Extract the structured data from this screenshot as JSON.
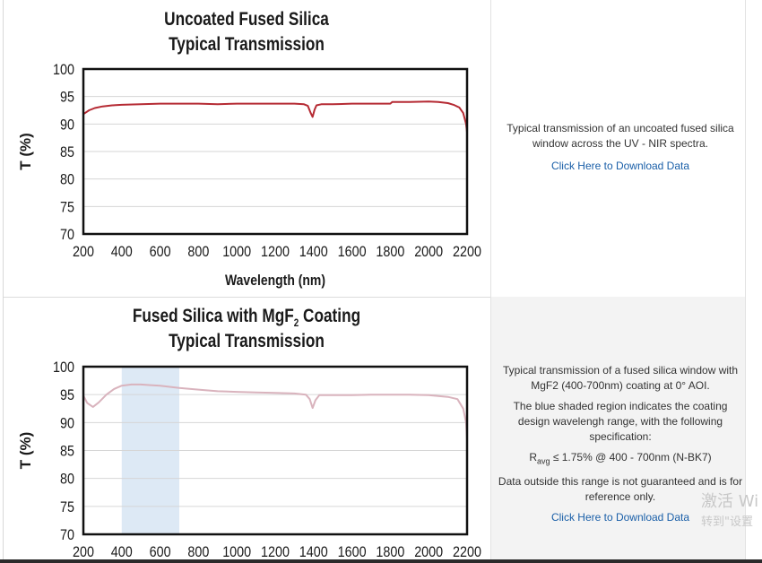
{
  "panel1": {
    "title_line1": "Uncoated Fused Silica",
    "title_line2": "Typical Transmission",
    "description": "Typical transmission of an uncoated fused silica window across the UV - NIR spectra.",
    "download_link": "Click Here to Download Data"
  },
  "panel2": {
    "title_line1_pre": "Fused Silica with MgF",
    "title_line1_sub": "2",
    "title_line1_post": " Coating",
    "title_line2": "Typical Transmission",
    "description1": "Typical transmission of a fused silica window with MgF2 (400-700nm) coating at 0° AOI.",
    "description2": "The blue shaded region indicates the coating design wavelengh range, with the following specification:",
    "spec_R": "R",
    "spec_sub": "avg",
    "spec_rest": " ≤ 1.75% @ 400 - 700nm (N-BK7)",
    "description3": "Data outside this range is not guaranteed and is for reference only.",
    "download_link": "Click Here to Download Data"
  },
  "watermark": {
    "line1": "激活 Wi",
    "line2": "转到\"设置"
  },
  "colors": {
    "uncoated_curve": "#b52a33",
    "coated_curve": "#d9b3bd",
    "shaded_band": "#dde9f5",
    "link": "#1a5fa8"
  },
  "chart_data": [
    {
      "type": "line",
      "title": "Uncoated Fused Silica Typical Transmission",
      "xlabel": "Wavelength (nm)",
      "ylabel": "T (%)",
      "xlim": [
        200,
        2200
      ],
      "ylim": [
        70,
        100
      ],
      "xticks": [
        "200",
        "400",
        "600",
        "800",
        "1000",
        "1200",
        "1400",
        "1600",
        "1800",
        "2000",
        "2200"
      ],
      "yticks": [
        "70",
        "75",
        "80",
        "85",
        "90",
        "95",
        "100"
      ],
      "grid": true,
      "series": [
        {
          "x": [
            200,
            230,
            260,
            300,
            350,
            400,
            500,
            600,
            700,
            800,
            900,
            1000,
            1100,
            1200,
            1300,
            1350,
            1370,
            1385,
            1395,
            1405,
            1415,
            1440,
            1500,
            1600,
            1700,
            1800,
            1810,
            1900,
            2000,
            2050,
            2100,
            2130,
            2160,
            2180,
            2195,
            2200
          ],
          "y": [
            91.8,
            92.5,
            92.9,
            93.2,
            93.4,
            93.5,
            93.6,
            93.7,
            93.7,
            93.7,
            93.6,
            93.7,
            93.7,
            93.7,
            93.7,
            93.6,
            93.3,
            92.0,
            91.3,
            92.6,
            93.4,
            93.6,
            93.6,
            93.7,
            93.7,
            93.7,
            94.0,
            94.0,
            94.1,
            94.0,
            93.8,
            93.5,
            93.0,
            92.0,
            90.0,
            88.5
          ]
        }
      ]
    },
    {
      "type": "line",
      "title": "Fused Silica with MgF2 Coating Typical Transmission",
      "xlabel": "",
      "ylabel": "T (%)",
      "xlim": [
        200,
        2200
      ],
      "ylim": [
        70,
        100
      ],
      "xticks": [
        "200",
        "400",
        "600",
        "800",
        "1000",
        "1200",
        "1400",
        "1600",
        "1800",
        "2000",
        "2200"
      ],
      "yticks": [
        "70",
        "75",
        "80",
        "85",
        "90",
        "95",
        "100"
      ],
      "grid": true,
      "shaded_band": [
        400,
        700
      ],
      "series": [
        {
          "x": [
            200,
            220,
            250,
            280,
            320,
            360,
            400,
            450,
            500,
            550,
            600,
            700,
            800,
            900,
            1000,
            1100,
            1200,
            1300,
            1360,
            1380,
            1395,
            1410,
            1430,
            1500,
            1600,
            1700,
            1800,
            1900,
            2000,
            2100,
            2150,
            2180,
            2195,
            2200
          ],
          "y": [
            94.8,
            93.5,
            92.8,
            93.6,
            95.0,
            96.0,
            96.6,
            96.8,
            96.8,
            96.7,
            96.6,
            96.2,
            95.9,
            95.6,
            95.5,
            95.4,
            95.3,
            95.2,
            95.0,
            94.2,
            92.6,
            94.0,
            94.9,
            94.9,
            94.9,
            95.0,
            95.0,
            95.0,
            94.9,
            94.6,
            94.2,
            92.5,
            90.0,
            87.0
          ]
        }
      ]
    }
  ]
}
